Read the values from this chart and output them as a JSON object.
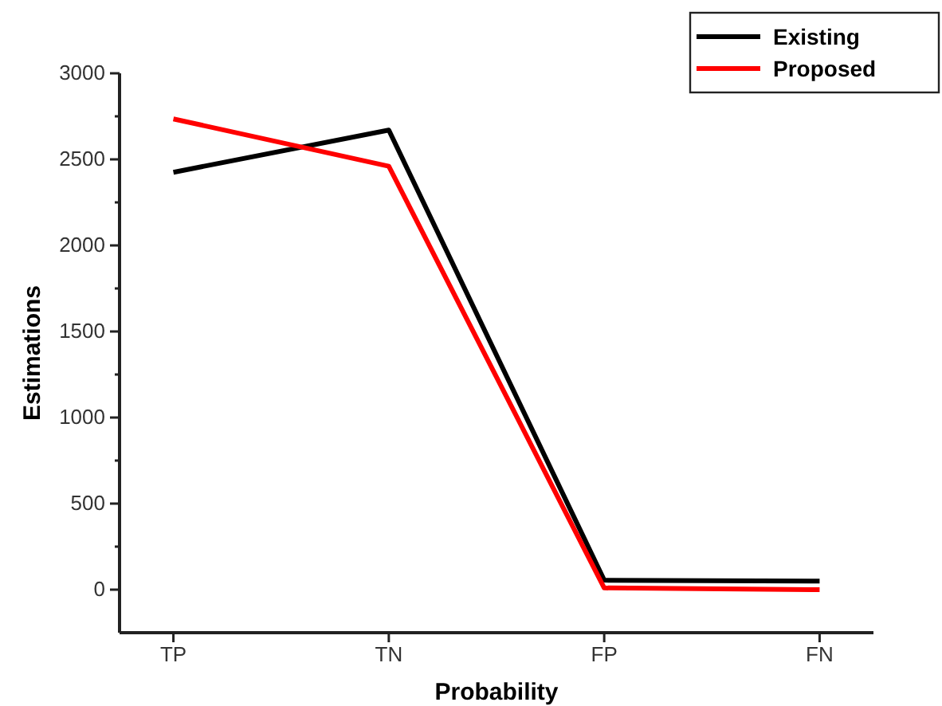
{
  "chart_data": {
    "type": "line",
    "xlabel": "Probability",
    "ylabel": "Estimations",
    "categories": [
      "TP",
      "TN",
      "FP",
      "FN"
    ],
    "series": [
      {
        "name": "Existing",
        "color": "#000000",
        "values": [
          2425,
          2670,
          55,
          50
        ]
      },
      {
        "name": "Proposed",
        "color": "#ff0000",
        "values": [
          2735,
          2460,
          10,
          0
        ]
      }
    ],
    "ylim": [
      -250,
      3000
    ],
    "yticks": [
      0,
      {
        "value": 250,
        "label": null
      },
      500,
      {
        "value": 750,
        "label": null
      },
      1000,
      {
        "value": 1250,
        "label": null
      },
      1500,
      {
        "value": 1750,
        "label": null
      },
      2000,
      {
        "value": 2250,
        "label": null
      },
      2500,
      {
        "value": 2750,
        "label": null
      },
      3000
    ],
    "legend": "top right",
    "grid": false,
    "marker": "none",
    "line_style": "solid"
  }
}
